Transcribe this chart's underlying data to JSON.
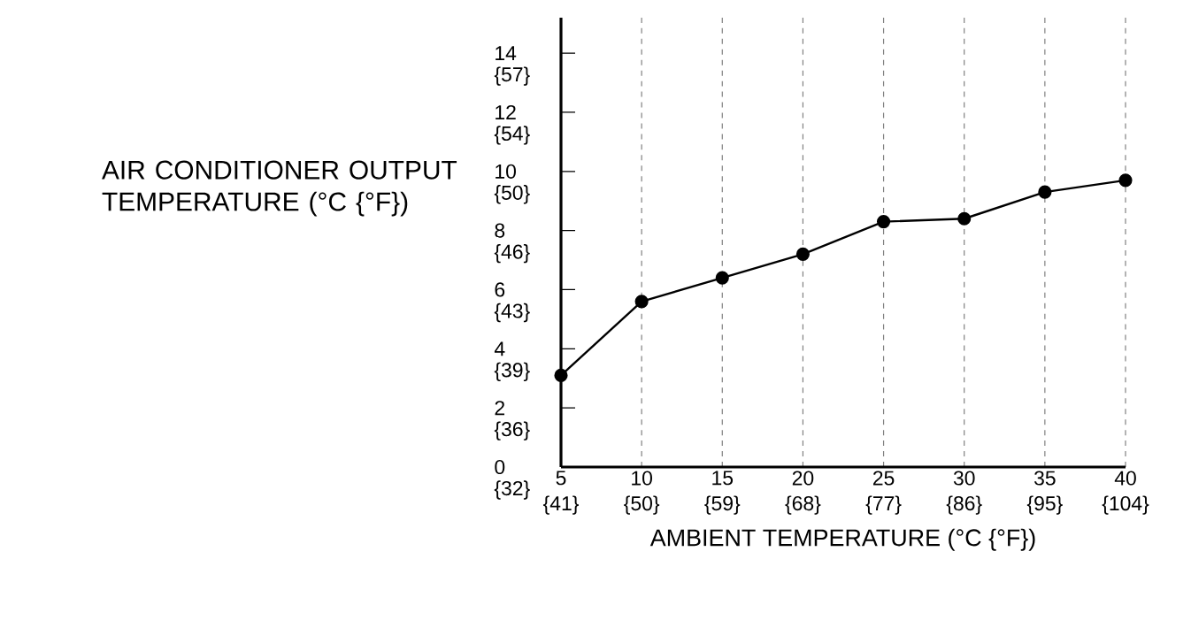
{
  "chart_data": {
    "type": "line",
    "xlabel": "AMBIENT TEMPERATURE (°C {°F})",
    "ylabel": "AIR CONDITIONER OUTPUT TEMPERATURE (°C {°F})",
    "x": [
      5,
      10,
      15,
      20,
      25,
      30,
      35,
      40
    ],
    "series": [
      {
        "color": "#000000",
        "values": [
          3.1,
          5.6,
          6.4,
          7.2,
          8.3,
          8.4,
          9.3,
          9.7
        ]
      }
    ],
    "xlim": [
      5,
      40
    ],
    "ylim": [
      0,
      15.2
    ],
    "xticks": [
      5,
      10,
      15,
      20,
      25,
      30,
      35,
      40
    ],
    "yticks": [
      0,
      2,
      4,
      6,
      8,
      10,
      12,
      14
    ],
    "x2lim": [
      41,
      104
    ],
    "x2ticks": [
      {
        "value": 41,
        "label": "{41}"
      },
      {
        "value": 50,
        "label": "{50}"
      },
      {
        "value": 59,
        "label": "{59}"
      },
      {
        "value": 68,
        "label": "{68}"
      },
      {
        "value": 77,
        "label": "{77}"
      },
      {
        "value": 86,
        "label": "{86}"
      },
      {
        "value": 95,
        "label": "{95}"
      },
      {
        "value": 104,
        "label": "{104}"
      }
    ],
    "y2lim": [
      32,
      59.36
    ],
    "y2ticks": [
      {
        "value": 32,
        "label": "{32}"
      },
      {
        "value": 35.6,
        "label": "{36}"
      },
      {
        "value": 39.2,
        "label": "{39}"
      },
      {
        "value": 42.8,
        "label": "{43}"
      },
      {
        "value": 46.4,
        "label": "{46}"
      },
      {
        "value": 50,
        "label": "{50}"
      },
      {
        "value": 53.6,
        "label": "{54}"
      },
      {
        "value": 57.2,
        "label": "{57}"
      }
    ],
    "grid": "x",
    "marker": "circle",
    "line_style": "solid"
  }
}
